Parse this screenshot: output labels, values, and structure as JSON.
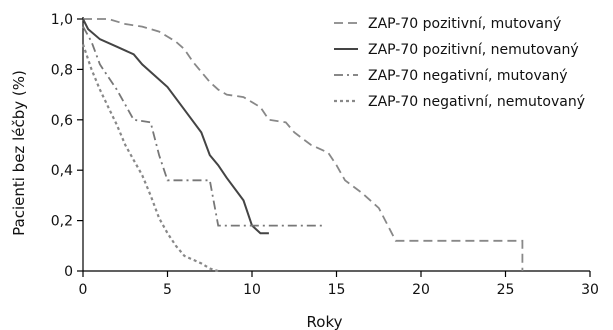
{
  "chart_data": {
    "type": "line",
    "title": "",
    "xlabel": "Roky",
    "ylabel": "Pacienti bez léčby (%)",
    "xlim": [
      0,
      30
    ],
    "ylim": [
      0,
      1.0
    ],
    "x_ticks": [
      "0",
      "5",
      "10",
      "15",
      "20",
      "25",
      "30"
    ],
    "y_ticks": [
      "0",
      "0,2",
      "0,4",
      "0,6",
      "0,8",
      "1,0"
    ],
    "grid": false,
    "legend_position": "top-right",
    "series": [
      {
        "name": "ZAP-70 pozitivní, mutovaný",
        "style": "dashed",
        "color": "#888888",
        "points": [
          [
            0,
            1.0
          ],
          [
            1.5,
            1.0
          ],
          [
            2.5,
            0.98
          ],
          [
            3.5,
            0.97
          ],
          [
            4.5,
            0.95
          ],
          [
            5.0,
            0.93
          ],
          [
            5.5,
            0.91
          ],
          [
            6.0,
            0.88
          ],
          [
            6.5,
            0.83
          ],
          [
            7.0,
            0.79
          ],
          [
            7.5,
            0.75
          ],
          [
            8.0,
            0.72
          ],
          [
            8.5,
            0.7
          ],
          [
            9.5,
            0.69
          ],
          [
            10.5,
            0.65
          ],
          [
            11.0,
            0.6
          ],
          [
            12.0,
            0.59
          ],
          [
            12.5,
            0.55
          ],
          [
            13.5,
            0.5
          ],
          [
            14.5,
            0.47
          ],
          [
            15.0,
            0.42
          ],
          [
            15.5,
            0.36
          ],
          [
            16.5,
            0.31
          ],
          [
            17.5,
            0.25
          ],
          [
            18.5,
            0.12
          ],
          [
            26.0,
            0.12
          ],
          [
            26.0,
            0.0
          ]
        ]
      },
      {
        "name": "ZAP-70 pozitivní, nemutovaný",
        "style": "solid",
        "color": "#444444",
        "points": [
          [
            0,
            1.0
          ],
          [
            0.3,
            0.96
          ],
          [
            1.0,
            0.92
          ],
          [
            2.0,
            0.89
          ],
          [
            3.0,
            0.86
          ],
          [
            3.5,
            0.82
          ],
          [
            4.5,
            0.76
          ],
          [
            5.0,
            0.73
          ],
          [
            6.0,
            0.64
          ],
          [
            7.0,
            0.55
          ],
          [
            7.5,
            0.46
          ],
          [
            8.0,
            0.42
          ],
          [
            8.5,
            0.37
          ],
          [
            9.5,
            0.28
          ],
          [
            10.0,
            0.18
          ],
          [
            10.5,
            0.15
          ],
          [
            11.0,
            0.15
          ]
        ]
      },
      {
        "name": "ZAP-70 negativní, mutovaný",
        "style": "dashdot",
        "color": "#777777",
        "points": [
          [
            0,
            0.97
          ],
          [
            0.5,
            0.91
          ],
          [
            1.0,
            0.82
          ],
          [
            1.5,
            0.77
          ],
          [
            2.0,
            0.72
          ],
          [
            2.5,
            0.66
          ],
          [
            3.0,
            0.6
          ],
          [
            4.0,
            0.59
          ],
          [
            4.5,
            0.46
          ],
          [
            5.0,
            0.36
          ],
          [
            7.5,
            0.36
          ],
          [
            8.0,
            0.18
          ],
          [
            14.3,
            0.18
          ]
        ]
      },
      {
        "name": "ZAP-70 negativní, nemutovaný",
        "style": "dotted",
        "color": "#888888",
        "points": [
          [
            0,
            0.9
          ],
          [
            0.5,
            0.8
          ],
          [
            1.0,
            0.72
          ],
          [
            1.5,
            0.65
          ],
          [
            2.0,
            0.58
          ],
          [
            2.5,
            0.5
          ],
          [
            3.0,
            0.44
          ],
          [
            3.5,
            0.38
          ],
          [
            4.0,
            0.3
          ],
          [
            4.5,
            0.21
          ],
          [
            5.0,
            0.15
          ],
          [
            5.5,
            0.1
          ],
          [
            6.0,
            0.06
          ],
          [
            7.0,
            0.03
          ],
          [
            7.5,
            0.01
          ],
          [
            8.0,
            0.0
          ]
        ]
      }
    ]
  }
}
